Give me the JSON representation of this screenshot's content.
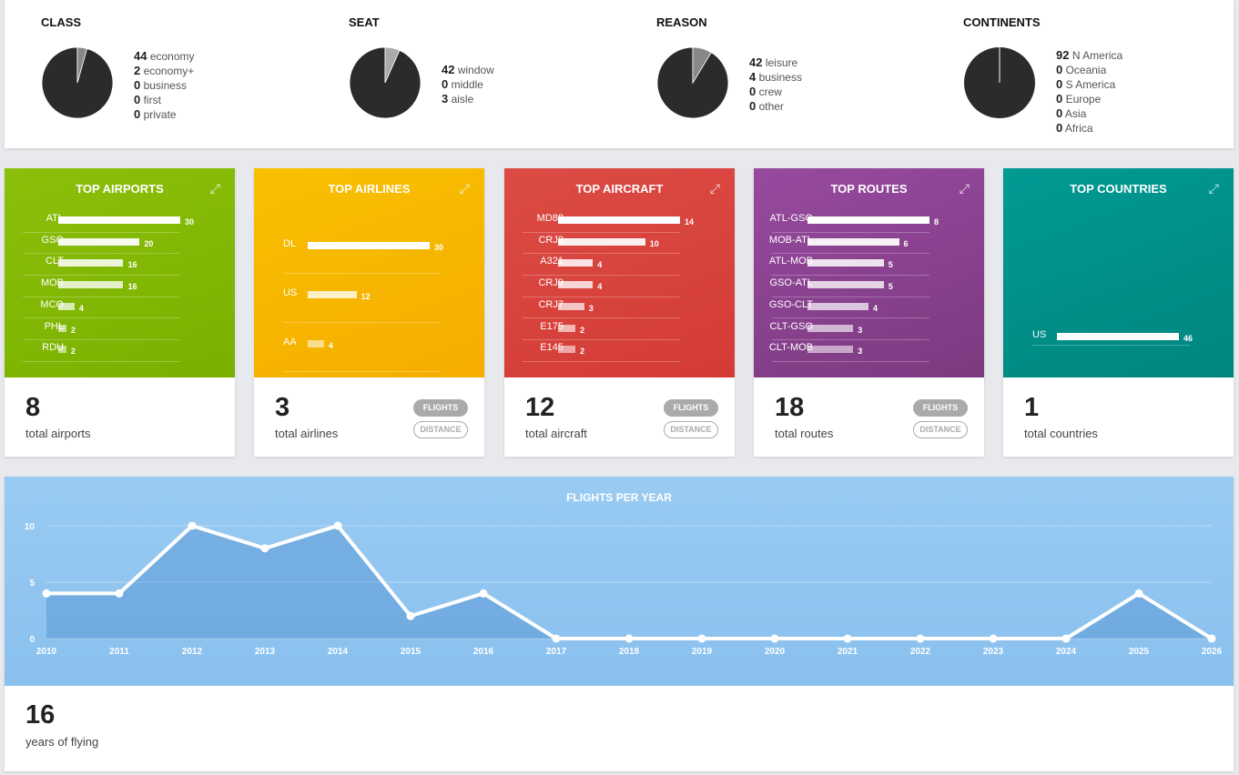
{
  "pies": [
    {
      "title": "CLASS",
      "items": [
        {
          "n": 44,
          "l": "economy"
        },
        {
          "n": 2,
          "l": "economy+"
        },
        {
          "n": 0,
          "l": "business"
        },
        {
          "n": 0,
          "l": "first"
        },
        {
          "n": 0,
          "l": "private"
        }
      ]
    },
    {
      "title": "SEAT",
      "items": [
        {
          "n": 42,
          "l": "window"
        },
        {
          "n": 0,
          "l": "middle"
        },
        {
          "n": 3,
          "l": "aisle"
        }
      ]
    },
    {
      "title": "REASON",
      "items": [
        {
          "n": 42,
          "l": "leisure"
        },
        {
          "n": 4,
          "l": "business"
        },
        {
          "n": 0,
          "l": "crew"
        },
        {
          "n": 0,
          "l": "other"
        }
      ]
    },
    {
      "title": "CONTINENTS",
      "items": [
        {
          "n": 92,
          "l": "N America"
        },
        {
          "n": 0,
          "l": "Oceania"
        },
        {
          "n": 0,
          "l": "S America"
        },
        {
          "n": 0,
          "l": "Europe"
        },
        {
          "n": 0,
          "l": "Asia"
        },
        {
          "n": 0,
          "l": "Africa"
        }
      ]
    }
  ],
  "cards": [
    {
      "title": "TOP AIRPORTS",
      "color": "#8cbf0a",
      "color2": "#79b000",
      "total": "8",
      "total_label": "total airports",
      "toggles": false,
      "rows": [
        [
          "ATL",
          30
        ],
        [
          "GSO",
          20
        ],
        [
          "CLT",
          16
        ],
        [
          "MOB",
          16
        ],
        [
          "MCO",
          4
        ],
        [
          "PHL",
          2
        ],
        [
          "RDU",
          2
        ]
      ]
    },
    {
      "title": "TOP AIRLINES",
      "color": "#f8c000",
      "color2": "#f5ad00",
      "total": "3",
      "total_label": "total airlines",
      "toggles": true,
      "rows": [
        [
          "DL",
          30
        ],
        [
          "US",
          12
        ],
        [
          "AA",
          4
        ]
      ]
    },
    {
      "title": "TOP AIRCRAFT",
      "color": "#dc4b45",
      "color2": "#d43b36",
      "total": "12",
      "total_label": "total aircraft",
      "toggles": true,
      "rows": [
        [
          "MD88",
          14
        ],
        [
          "CRJ2",
          10
        ],
        [
          "A321",
          4
        ],
        [
          "CRJ9",
          4
        ],
        [
          "CRJ7",
          3
        ],
        [
          "E175",
          2
        ],
        [
          "E145",
          2
        ]
      ]
    },
    {
      "title": "TOP ROUTES",
      "color": "#974a9e",
      "color2": "#7c3a80",
      "total": "18",
      "total_label": "total routes",
      "toggles": true,
      "rows": [
        [
          "ATL-GSO",
          8
        ],
        [
          "MOB-ATL",
          6
        ],
        [
          "ATL-MOB",
          5
        ],
        [
          "GSO-ATL",
          5
        ],
        [
          "GSO-CLT",
          4
        ],
        [
          "CLT-GSO",
          3
        ],
        [
          "CLT-MOB",
          3
        ]
      ]
    },
    {
      "title": "TOP COUNTRIES",
      "color": "#009a93",
      "color2": "#00867f",
      "total": "1",
      "total_label": "total countries",
      "toggles": false,
      "rows": [
        [
          "US",
          46
        ]
      ]
    }
  ],
  "toggle_labels": {
    "flights": "FLIGHTS",
    "distance": "DISTANCE"
  },
  "chart_data": {
    "type": "area",
    "title": "FLIGHTS PER YEAR",
    "x": [
      2010,
      2011,
      2012,
      2013,
      2014,
      2015,
      2016,
      2017,
      2018,
      2019,
      2020,
      2021,
      2022,
      2023,
      2024,
      2025,
      2026
    ],
    "values": [
      4,
      4,
      10,
      8,
      10,
      2,
      4,
      0,
      0,
      0,
      0,
      0,
      0,
      0,
      0,
      4,
      0
    ],
    "yticks": [
      0,
      5,
      10
    ],
    "ylim": [
      0,
      10
    ]
  },
  "footer": {
    "total": "16",
    "label": "years of flying"
  }
}
